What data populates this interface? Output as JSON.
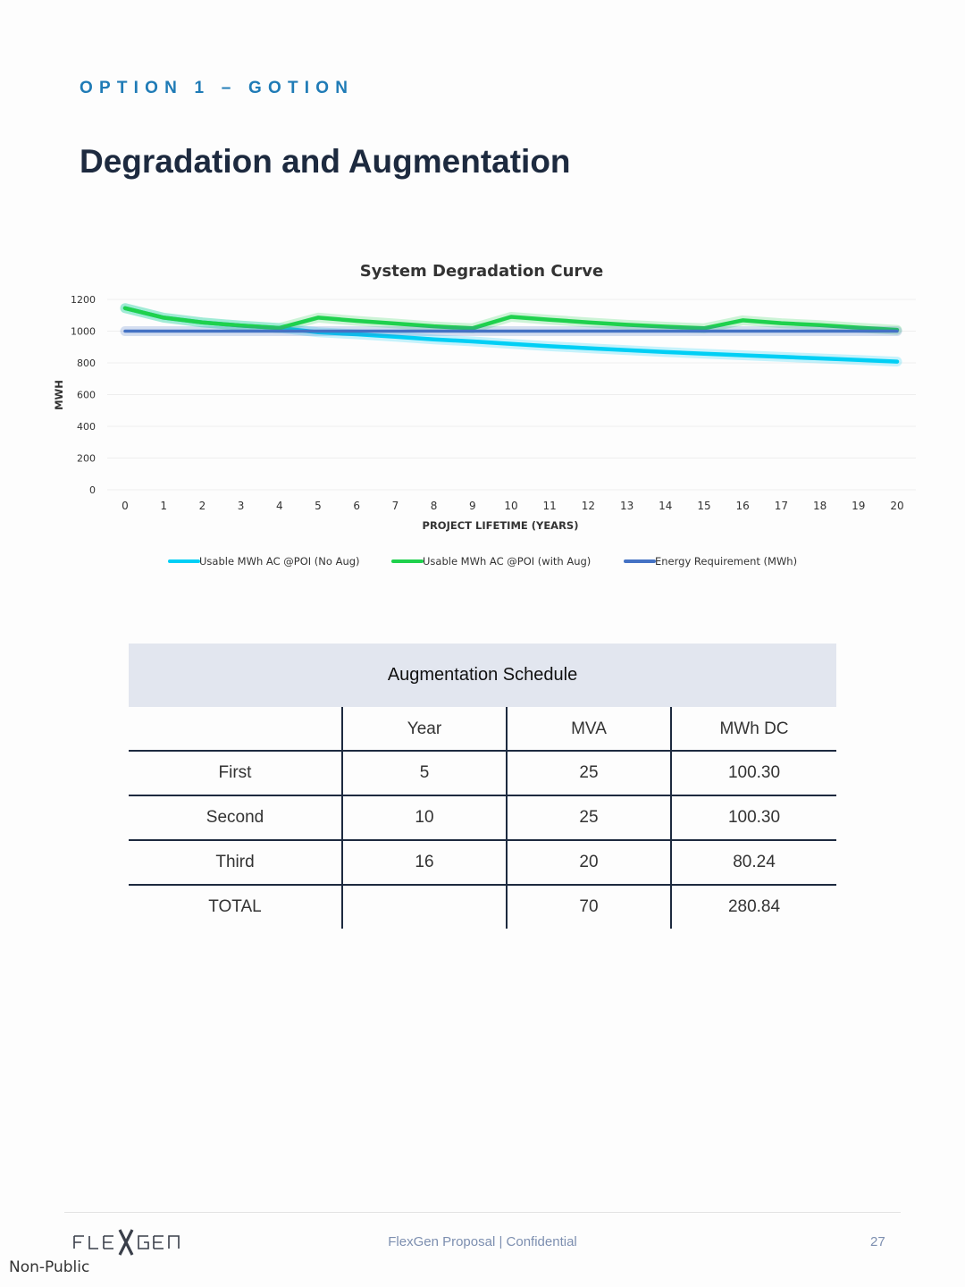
{
  "header": {
    "kicker": "OPTION 1 – GOTION",
    "title": "Degradation and Augmentation"
  },
  "chart_data": {
    "type": "line",
    "title": "System Degradation Curve",
    "xlabel": "PROJECT LIFETIME (YEARS)",
    "ylabel": "MWH",
    "x": [
      0,
      1,
      2,
      3,
      4,
      5,
      6,
      7,
      8,
      9,
      10,
      11,
      12,
      13,
      14,
      15,
      16,
      17,
      18,
      19,
      20
    ],
    "yticks": [
      0,
      200,
      400,
      600,
      800,
      1000,
      1200
    ],
    "ylim": [
      0,
      1200
    ],
    "xlim": [
      0,
      20
    ],
    "grid": "horizontal",
    "legend": "bottom",
    "series": [
      {
        "name": "Usable MWh AC @POI (No Aug)",
        "color": "#00cff5",
        "values": [
          1145,
          1085,
          1055,
          1035,
          1020,
          993,
          980,
          965,
          948,
          935,
          920,
          905,
          892,
          880,
          868,
          858,
          848,
          838,
          828,
          818,
          808
        ]
      },
      {
        "name": "Usable MWh AC @POI (with Aug)",
        "color": "#1fd14d",
        "values": [
          1145,
          1085,
          1055,
          1035,
          1020,
          1085,
          1065,
          1048,
          1030,
          1018,
          1090,
          1072,
          1055,
          1040,
          1028,
          1018,
          1068,
          1050,
          1038,
          1022,
          1008
        ]
      },
      {
        "name": "Energy Requirement (MWh)",
        "color": "#4472c4",
        "values": [
          1000,
          1000,
          1000,
          1000,
          1000,
          1000,
          1000,
          1000,
          1000,
          1000,
          1000,
          1000,
          1000,
          1000,
          1000,
          1000,
          1000,
          1000,
          1000,
          1000,
          1000
        ]
      }
    ]
  },
  "table": {
    "caption": "Augmentation Schedule",
    "headers": [
      "",
      "Year",
      "MVA",
      "MWh DC"
    ],
    "rows": [
      [
        "First",
        "5",
        "25",
        "100.30"
      ],
      [
        "Second",
        "10",
        "25",
        "100.30"
      ],
      [
        "Third",
        "16",
        "20",
        "80.24"
      ],
      [
        "TOTAL",
        "",
        "70",
        "280.84"
      ]
    ]
  },
  "footer": {
    "logo_text": "FLEXGEN",
    "center": "FlexGen Proposal | Confidential",
    "page": "27",
    "classification": "Non-Public"
  }
}
